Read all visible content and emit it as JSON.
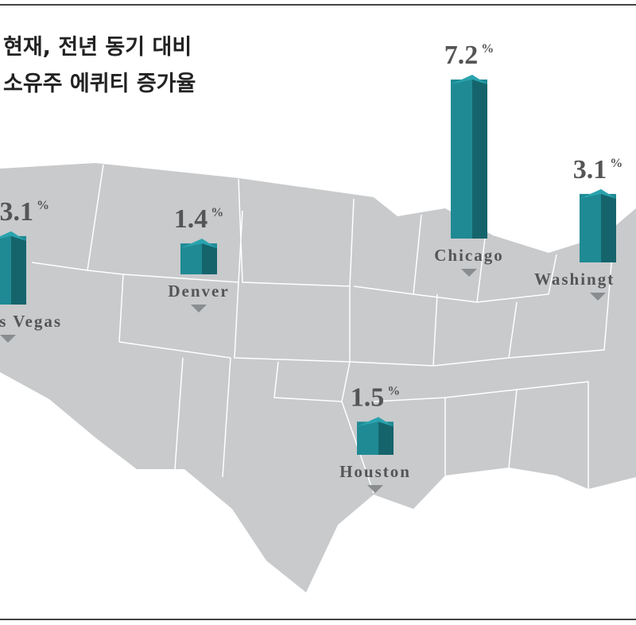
{
  "chart_data": {
    "type": "map-bar",
    "title_lines": [
      "현재, 전년 동기 대비",
      "소유주 에퀴티 증가율"
    ],
    "categories": [
      "Las Vegas",
      "Denver",
      "Chicago",
      "Washingt",
      "Houston"
    ],
    "values": [
      3.1,
      1.4,
      7.2,
      3.1,
      1.5
    ],
    "unit": "%",
    "color": "#1f8a94"
  }
}
